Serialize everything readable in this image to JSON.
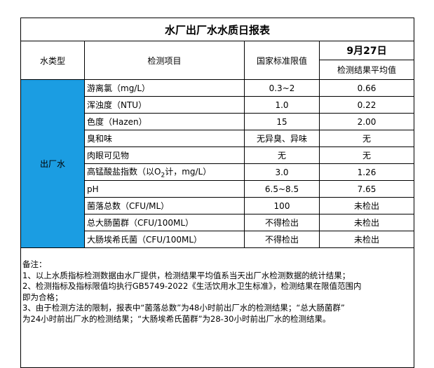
{
  "title": "水厂出厂水水质日报表",
  "header": {
    "water_type": "水类型",
    "item": "检测项目",
    "standard": "国家标准限值",
    "date": "9月27日",
    "result": "检测结果平均值"
  },
  "water_type": "出厂水",
  "rows": [
    {
      "item": "游离氯（mg/L）",
      "standard": "0.3~2",
      "result": "0.66"
    },
    {
      "item": "浑浊度（NTU）",
      "standard": "1.0",
      "result": "0.22"
    },
    {
      "item": "色度（Hazen）",
      "standard": "15",
      "result": "2.00"
    },
    {
      "item": "臭和味",
      "standard": "无异臭、异味",
      "result": "无"
    },
    {
      "item": "肉眼可见物",
      "standard": "无",
      "result": "无"
    },
    {
      "item": [
        "高锰酸盐指数（以O",
        "2",
        "计，mg/L）"
      ],
      "standard": "3.0",
      "result": "1.26"
    },
    {
      "item": "pH",
      "standard": "6.5~8.5",
      "result": "7.65"
    },
    {
      "item": "菌落总数（CFU/ML）",
      "standard": "100",
      "result": "未检出"
    },
    {
      "item": "总大肠菌群（CFU/100ML）",
      "standard": "不得检出",
      "result": "未检出"
    },
    {
      "item": "大肠埃希氏菌（CFU/100ML）",
      "standard": "不得检出",
      "result": "未检出"
    }
  ],
  "notes": [
    "备注：",
    "1、以上水质指标检测数据由水厂提供，检测结果平均值系当天出厂水检测数据的统计结果；",
    "2、检测指标及指标限值均执行GB5749-2022《生活饮用水卫生标准》，检测结果在限值范围内",
    "即为合格；",
    "3、由于检测方法的限制，报表中“菌落总数”为48小时前出厂水的检测结果；“总大肠菌群”",
    "为24小时前出厂水的检测结果；“大肠埃希氏菌群”为28-30小时前出厂水的检测结果。"
  ]
}
